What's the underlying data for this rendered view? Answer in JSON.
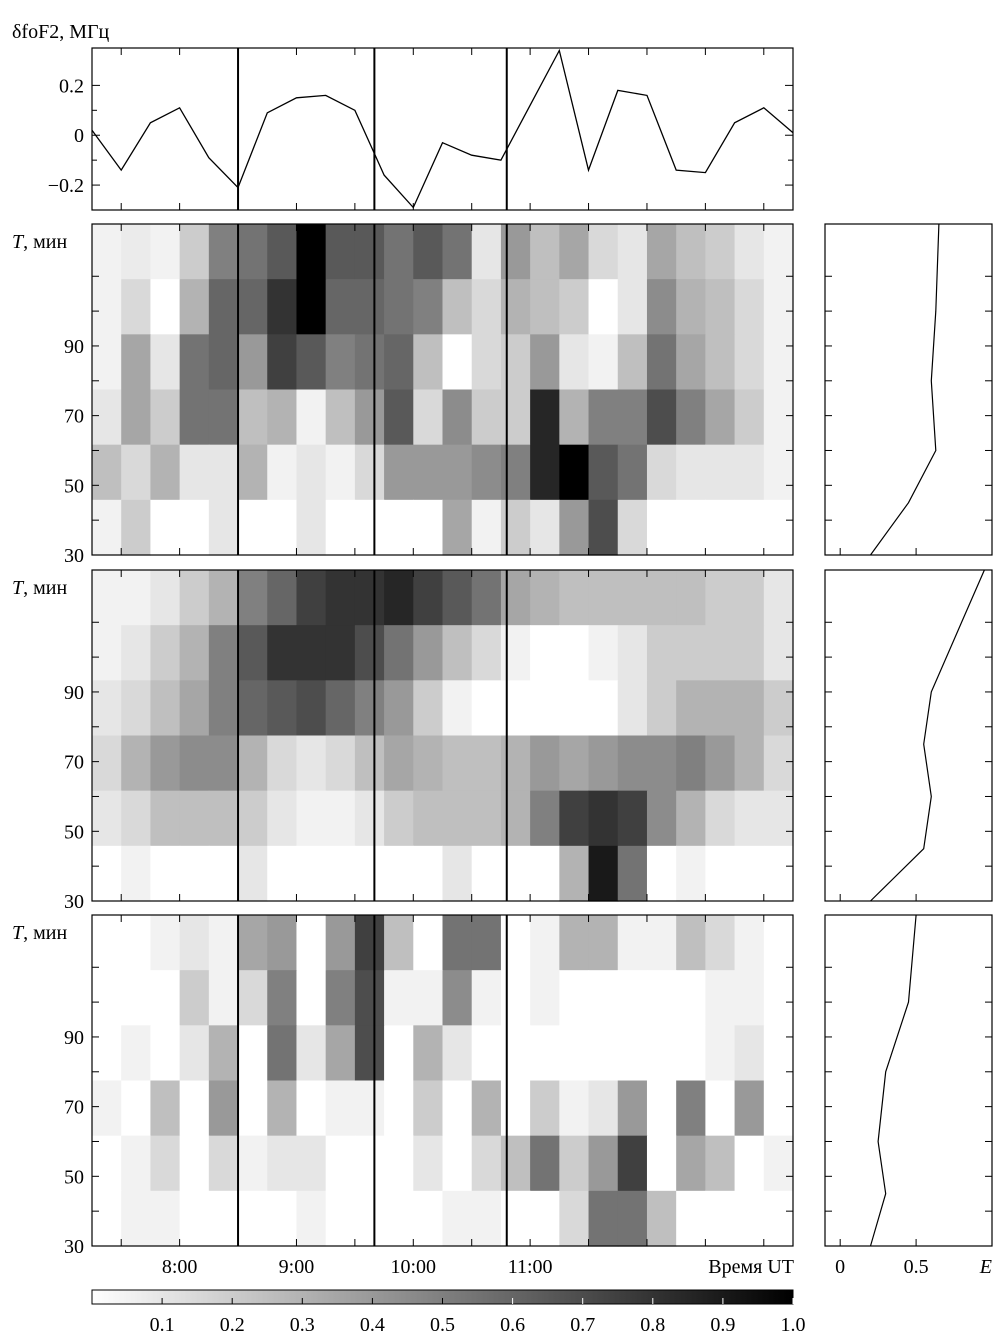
{
  "chart_data": {
    "type": "heatmap",
    "time_ticks": [
      "8:00",
      "9:00",
      "10:00",
      "11:00"
    ],
    "time_axis_label": "Время UT",
    "vertical_lines_ut": [
      8.5,
      9.667,
      10.8
    ],
    "top_panel": {
      "ylabel": "δfoF2, МГц",
      "yticks": [
        "0.2",
        "0",
        "−0.2"
      ],
      "ytick_values": [
        0.2,
        0,
        -0.2
      ],
      "ylim": [
        -0.3,
        0.35
      ],
      "x_ut": [
        7.25,
        7.5,
        7.75,
        8.0,
        8.25,
        8.5,
        8.75,
        9.0,
        9.25,
        9.5,
        9.75,
        10.0,
        10.25,
        10.5,
        10.75,
        11.0,
        11.25,
        11.5,
        11.75,
        12.0,
        12.25,
        12.5,
        12.75,
        13.0,
        13.25
      ],
      "values": [
        0.02,
        -0.14,
        0.05,
        0.11,
        -0.09,
        -0.21,
        0.09,
        0.15,
        0.16,
        0.1,
        -0.16,
        -0.29,
        -0.03,
        -0.08,
        -0.1,
        0.12,
        0.34,
        -0.14,
        0.18,
        0.16,
        -0.14,
        -0.15,
        0.05,
        0.11,
        0.01
      ]
    },
    "heatmap_panels": [
      {
        "ylabel": "T, мин",
        "yticks": [
          "90",
          "70",
          "50",
          "30"
        ],
        "ytick_values": [
          90,
          70,
          50,
          30
        ],
        "rows": [
          [
            0.05,
            0.08,
            0.05,
            0.2,
            0.5,
            0.55,
            0.65,
            1.0,
            0.65,
            0.65,
            0.55,
            0.65,
            0.55,
            0.1,
            0.4,
            0.25,
            0.35,
            0.15,
            0.1,
            0.35,
            0.25,
            0.2,
            0.1,
            0.05
          ],
          [
            0.05,
            0.15,
            0.0,
            0.3,
            0.6,
            0.6,
            0.8,
            1.0,
            0.6,
            0.6,
            0.55,
            0.5,
            0.25,
            0.15,
            0.3,
            0.25,
            0.2,
            0.0,
            0.1,
            0.45,
            0.3,
            0.25,
            0.15,
            0.05
          ],
          [
            0.05,
            0.35,
            0.1,
            0.55,
            0.6,
            0.4,
            0.75,
            0.65,
            0.5,
            0.55,
            0.6,
            0.25,
            0.0,
            0.15,
            0.2,
            0.4,
            0.1,
            0.05,
            0.25,
            0.55,
            0.35,
            0.25,
            0.15,
            0.05
          ],
          [
            0.1,
            0.35,
            0.2,
            0.55,
            0.55,
            0.25,
            0.3,
            0.05,
            0.25,
            0.4,
            0.65,
            0.15,
            0.45,
            0.2,
            0.2,
            0.85,
            0.3,
            0.5,
            0.5,
            0.7,
            0.5,
            0.35,
            0.2,
            0.05
          ],
          [
            0.25,
            0.15,
            0.3,
            0.1,
            0.1,
            0.3,
            0.05,
            0.1,
            0.05,
            0.15,
            0.4,
            0.4,
            0.4,
            0.45,
            0.5,
            0.85,
            1.0,
            0.65,
            0.55,
            0.15,
            0.1,
            0.1,
            0.1,
            0.05
          ],
          [
            0.05,
            0.2,
            0.0,
            0.0,
            0.1,
            0.0,
            0.0,
            0.1,
            0.0,
            0.0,
            0.0,
            0.0,
            0.35,
            0.05,
            0.2,
            0.1,
            0.4,
            0.7,
            0.15,
            0.0,
            0.0,
            0.0,
            0.0,
            0.0
          ]
        ],
        "energy": {
          "x": [
            0.2,
            0.45,
            0.63,
            0.6,
            0.63,
            0.65
          ],
          "T": [
            30,
            45,
            60,
            80,
            100,
            125
          ]
        }
      },
      {
        "ylabel": "T, мин",
        "yticks": [
          "90",
          "70",
          "50",
          "30"
        ],
        "ytick_values": [
          90,
          70,
          50,
          30
        ],
        "rows": [
          [
            0.05,
            0.05,
            0.1,
            0.2,
            0.3,
            0.5,
            0.6,
            0.75,
            0.8,
            0.8,
            0.85,
            0.75,
            0.65,
            0.55,
            0.35,
            0.3,
            0.25,
            0.25,
            0.25,
            0.25,
            0.25,
            0.2,
            0.2,
            0.1
          ],
          [
            0.05,
            0.1,
            0.2,
            0.3,
            0.5,
            0.65,
            0.8,
            0.8,
            0.8,
            0.7,
            0.55,
            0.4,
            0.25,
            0.15,
            0.05,
            0.0,
            0.0,
            0.05,
            0.1,
            0.2,
            0.2,
            0.2,
            0.2,
            0.1
          ],
          [
            0.1,
            0.15,
            0.25,
            0.35,
            0.5,
            0.6,
            0.65,
            0.7,
            0.6,
            0.5,
            0.4,
            0.2,
            0.05,
            0.0,
            0.0,
            0.0,
            0.0,
            0.0,
            0.1,
            0.2,
            0.3,
            0.3,
            0.3,
            0.2
          ],
          [
            0.15,
            0.3,
            0.4,
            0.45,
            0.45,
            0.3,
            0.15,
            0.1,
            0.15,
            0.25,
            0.35,
            0.3,
            0.25,
            0.25,
            0.3,
            0.4,
            0.35,
            0.4,
            0.45,
            0.45,
            0.5,
            0.4,
            0.3,
            0.15
          ],
          [
            0.1,
            0.15,
            0.25,
            0.25,
            0.25,
            0.2,
            0.1,
            0.05,
            0.05,
            0.1,
            0.2,
            0.25,
            0.25,
            0.25,
            0.3,
            0.5,
            0.75,
            0.8,
            0.75,
            0.45,
            0.3,
            0.15,
            0.1,
            0.1
          ],
          [
            0.0,
            0.05,
            0.0,
            0.0,
            0.0,
            0.1,
            0.0,
            0.0,
            0.0,
            0.0,
            0.0,
            0.0,
            0.1,
            0.0,
            0.0,
            0.0,
            0.3,
            0.9,
            0.55,
            0.0,
            0.05,
            0.0,
            0.0,
            0.0
          ]
        ],
        "energy": {
          "x": [
            0.2,
            0.55,
            0.6,
            0.55,
            0.6,
            0.8,
            0.95
          ],
          "T": [
            30,
            45,
            60,
            75,
            90,
            110,
            125
          ]
        }
      },
      {
        "ylabel": "T, мин",
        "yticks": [
          "90",
          "70",
          "50",
          "30"
        ],
        "ytick_values": [
          90,
          70,
          50,
          30
        ],
        "rows": [
          [
            0.0,
            0.0,
            0.05,
            0.1,
            0.05,
            0.35,
            0.4,
            0.0,
            0.4,
            0.75,
            0.25,
            0.0,
            0.55,
            0.55,
            0.0,
            0.05,
            0.3,
            0.3,
            0.05,
            0.05,
            0.25,
            0.15,
            0.05,
            0.0
          ],
          [
            0.0,
            0.0,
            0.0,
            0.2,
            0.05,
            0.15,
            0.5,
            0.0,
            0.5,
            0.7,
            0.05,
            0.05,
            0.45,
            0.05,
            0.0,
            0.05,
            0.0,
            0.0,
            0.0,
            0.0,
            0.0,
            0.05,
            0.05,
            0.0
          ],
          [
            0.0,
            0.05,
            0.0,
            0.1,
            0.3,
            0.0,
            0.55,
            0.1,
            0.35,
            0.7,
            0.0,
            0.3,
            0.1,
            0.0,
            0.0,
            0.0,
            0.0,
            0.0,
            0.0,
            0.0,
            0.0,
            0.05,
            0.1,
            0.0
          ],
          [
            0.05,
            0.0,
            0.25,
            0.0,
            0.4,
            0.0,
            0.3,
            0.0,
            0.05,
            0.05,
            0.0,
            0.2,
            0.0,
            0.3,
            0.0,
            0.2,
            0.05,
            0.1,
            0.4,
            0.0,
            0.5,
            0.0,
            0.4,
            0.0
          ],
          [
            0.0,
            0.05,
            0.15,
            0.0,
            0.15,
            0.05,
            0.1,
            0.1,
            0.0,
            0.0,
            0.0,
            0.1,
            0.0,
            0.15,
            0.25,
            0.55,
            0.2,
            0.4,
            0.75,
            0.0,
            0.35,
            0.25,
            0.0,
            0.05
          ],
          [
            0.0,
            0.05,
            0.05,
            0.0,
            0.0,
            0.0,
            0.0,
            0.05,
            0.0,
            0.0,
            0.0,
            0.0,
            0.05,
            0.05,
            0.0,
            0.0,
            0.15,
            0.55,
            0.55,
            0.25,
            0.0,
            0.0,
            0.0,
            0.0
          ]
        ],
        "energy": {
          "x": [
            0.2,
            0.3,
            0.25,
            0.3,
            0.45,
            0.5
          ],
          "T": [
            30,
            45,
            60,
            80,
            100,
            125
          ]
        }
      }
    ],
    "energy_axis": {
      "xlabel": "E",
      "xticks": [
        "0",
        "0.5"
      ],
      "xtick_values": [
        0,
        0.5
      ],
      "xlim": [
        -0.1,
        1.0
      ]
    },
    "colorbar": {
      "ticks": [
        "0.1",
        "0.2",
        "0.3",
        "0.4",
        "0.5",
        "0.6",
        "0.7",
        "0.8",
        "0.9",
        "1.0"
      ],
      "tick_values": [
        0.1,
        0.2,
        0.3,
        0.4,
        0.5,
        0.6,
        0.7,
        0.8,
        0.9,
        1.0
      ],
      "range": [
        0,
        1
      ]
    }
  }
}
